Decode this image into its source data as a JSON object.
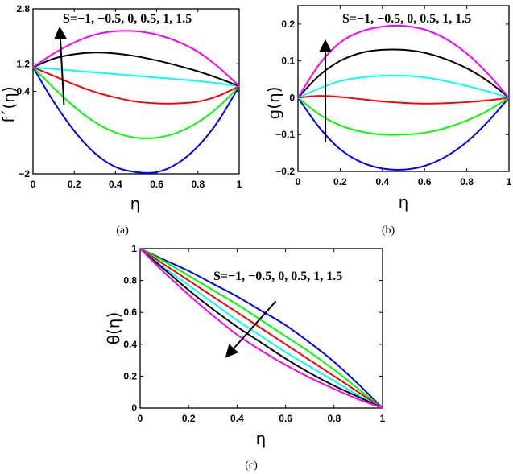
{
  "chart_data": [
    {
      "id": "a",
      "type": "line",
      "caption": "(a)",
      "annotation": "S=−1, −0.5, 0, 0.5, 1, 1.5",
      "xlabel": "η",
      "ylabel": "f´(η)",
      "xlim": [
        0,
        1
      ],
      "ylim": [
        -2,
        2.8
      ],
      "xticks": [
        0,
        0.2,
        0.4,
        0.6,
        0.8,
        1
      ],
      "xtick_labels": [
        "0",
        "0.2",
        "0.4",
        "0.6",
        "0.8",
        "1"
      ],
      "yticks": [
        -2,
        0.4,
        1.2,
        2.8
      ],
      "ytick_labels": [
        "−2",
        "0.4",
        "1.2",
        "2.8"
      ],
      "x": [
        0,
        0.1,
        0.2,
        0.3,
        0.4,
        0.5,
        0.6,
        0.7,
        0.8,
        0.9,
        1
      ],
      "series": [
        {
          "color": "#0000ff",
          "values": [
            1.1,
            0.1,
            -0.75,
            -1.4,
            -1.8,
            -1.95,
            -1.95,
            -1.7,
            -1.2,
            -0.45,
            0.55
          ]
        },
        {
          "color": "#00ff00",
          "values": [
            1.1,
            0.5,
            -0.05,
            -0.5,
            -0.8,
            -0.95,
            -0.95,
            -0.8,
            -0.5,
            -0.05,
            0.55
          ]
        },
        {
          "color": "#ff0000",
          "values": [
            1.1,
            0.85,
            0.6,
            0.38,
            0.22,
            0.1,
            0.05,
            0.05,
            0.1,
            0.27,
            0.55
          ]
        },
        {
          "color": "#00ffff",
          "values": [
            1.1,
            1.05,
            1.0,
            0.95,
            0.9,
            0.85,
            0.8,
            0.75,
            0.7,
            0.63,
            0.55
          ]
        },
        {
          "color": "#000000",
          "values": [
            1.1,
            1.35,
            1.48,
            1.53,
            1.5,
            1.42,
            1.3,
            1.15,
            0.98,
            0.78,
            0.55
          ]
        },
        {
          "color": "#ff00ff",
          "values": [
            1.1,
            1.5,
            1.82,
            2.05,
            2.15,
            2.15,
            2.05,
            1.85,
            1.55,
            1.1,
            0.55
          ]
        }
      ],
      "arrow": {
        "from": [
          0.15,
          0.0
        ],
        "to": [
          0.13,
          2.2
        ]
      }
    },
    {
      "id": "b",
      "type": "line",
      "caption": "(b)",
      "annotation": "S=−1, −0.5, 0, 0.5, 1, 1.5",
      "xlabel": "η",
      "ylabel": "g(η)",
      "xlim": [
        0,
        1
      ],
      "ylim": [
        -0.2,
        0.25
      ],
      "xticks": [
        0,
        0.2,
        0.4,
        0.6,
        0.8,
        1
      ],
      "xtick_labels": [
        "0",
        "0.2",
        "0.4",
        "0.6",
        "0.8",
        "1"
      ],
      "yticks": [
        -0.2,
        -0.1,
        0,
        0.1,
        0.2
      ],
      "ytick_labels": [
        "−0.2",
        "−0.1",
        "0",
        "0.1",
        "0.2"
      ],
      "x": [
        0,
        0.1,
        0.2,
        0.3,
        0.4,
        0.5,
        0.6,
        0.7,
        0.8,
        0.9,
        1
      ],
      "series": [
        {
          "color": "#0000ff",
          "values": [
            0,
            -0.08,
            -0.14,
            -0.175,
            -0.192,
            -0.195,
            -0.185,
            -0.16,
            -0.12,
            -0.065,
            0
          ]
        },
        {
          "color": "#00ff00",
          "values": [
            0,
            -0.045,
            -0.075,
            -0.092,
            -0.1,
            -0.1,
            -0.095,
            -0.082,
            -0.062,
            -0.035,
            0
          ]
        },
        {
          "color": "#ff0000",
          "values": [
            0,
            0.005,
            0.002,
            -0.004,
            -0.01,
            -0.014,
            -0.016,
            -0.015,
            -0.012,
            -0.007,
            0
          ]
        },
        {
          "color": "#00ffff",
          "values": [
            0,
            0.025,
            0.045,
            0.055,
            0.06,
            0.06,
            0.055,
            0.045,
            0.032,
            0.017,
            0
          ]
        },
        {
          "color": "#000000",
          "values": [
            0,
            0.06,
            0.1,
            0.122,
            0.13,
            0.13,
            0.122,
            0.105,
            0.08,
            0.045,
            0
          ]
        },
        {
          "color": "#ff00ff",
          "values": [
            0,
            0.09,
            0.15,
            0.18,
            0.193,
            0.195,
            0.185,
            0.16,
            0.12,
            0.065,
            0
          ]
        }
      ],
      "arrow": {
        "from": [
          0.13,
          -0.12
        ],
        "to": [
          0.13,
          0.15
        ]
      }
    },
    {
      "id": "c",
      "type": "line",
      "caption": "(c)",
      "annotation": "S=−1, −0.5, 0, 0.5, 1, 1.5",
      "xlabel": "η",
      "ylabel": "θ(η)",
      "xlim": [
        0,
        1
      ],
      "ylim": [
        0,
        1
      ],
      "xticks": [
        0,
        0.2,
        0.4,
        0.6,
        0.8,
        1
      ],
      "xtick_labels": [
        "0",
        "0.2",
        "0.4",
        "0.6",
        "0.8",
        "1"
      ],
      "yticks": [
        0,
        0.2,
        0.4,
        0.6,
        0.8,
        1
      ],
      "ytick_labels": [
        "0",
        "0.2",
        "0.4",
        "0.6",
        "0.8",
        "1"
      ],
      "x": [
        0,
        0.1,
        0.2,
        0.3,
        0.4,
        0.5,
        0.6,
        0.7,
        0.8,
        0.9,
        1
      ],
      "series": [
        {
          "color": "#0000ff",
          "values": [
            1,
            0.93,
            0.86,
            0.78,
            0.7,
            0.61,
            0.52,
            0.41,
            0.29,
            0.15,
            0
          ]
        },
        {
          "color": "#00ff00",
          "values": [
            1,
            0.92,
            0.83,
            0.74,
            0.65,
            0.55,
            0.45,
            0.35,
            0.24,
            0.12,
            0
          ]
        },
        {
          "color": "#ff0000",
          "values": [
            1,
            0.9,
            0.8,
            0.7,
            0.6,
            0.5,
            0.4,
            0.3,
            0.2,
            0.1,
            0
          ]
        },
        {
          "color": "#00ffff",
          "values": [
            1,
            0.88,
            0.77,
            0.66,
            0.55,
            0.45,
            0.35,
            0.26,
            0.17,
            0.08,
            0
          ]
        },
        {
          "color": "#000000",
          "values": [
            1,
            0.87,
            0.74,
            0.62,
            0.51,
            0.41,
            0.31,
            0.22,
            0.14,
            0.07,
            0
          ]
        },
        {
          "color": "#ff00ff",
          "values": [
            1,
            0.85,
            0.71,
            0.58,
            0.46,
            0.36,
            0.27,
            0.19,
            0.12,
            0.055,
            0
          ]
        }
      ],
      "arrow": {
        "from": [
          0.56,
          0.67
        ],
        "to": [
          0.36,
          0.33
        ]
      }
    }
  ]
}
